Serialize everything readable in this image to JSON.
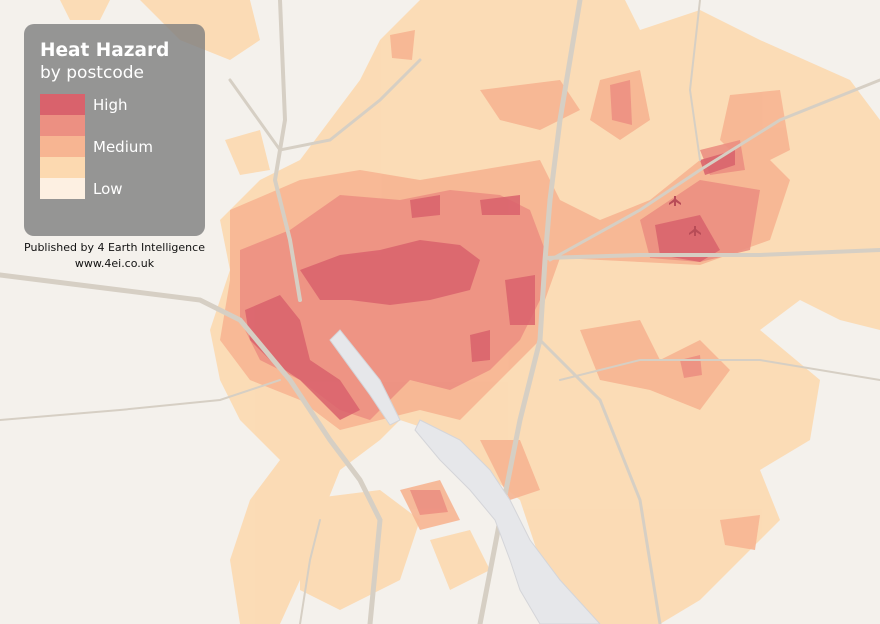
{
  "legend": {
    "title": "Heat Hazard",
    "subtitle": "by postcode",
    "classes": [
      {
        "label": "High",
        "color": "#d9626c"
      },
      {
        "label": "",
        "color": "#ec9082"
      },
      {
        "label": "Medium",
        "color": "#f7b592"
      },
      {
        "label": "",
        "color": "#fcd9b0"
      },
      {
        "label": "Low",
        "color": "#fdf0e2"
      }
    ]
  },
  "credit": {
    "line1": "Published by 4 Earth Intelligence",
    "line2": "www.4ei.co.uk"
  },
  "map": {
    "background_color": "#f4f1ec",
    "water_color": "#e6e7ea",
    "road_color": "#d6cfc4",
    "airport_icon": "airplane-icon"
  }
}
